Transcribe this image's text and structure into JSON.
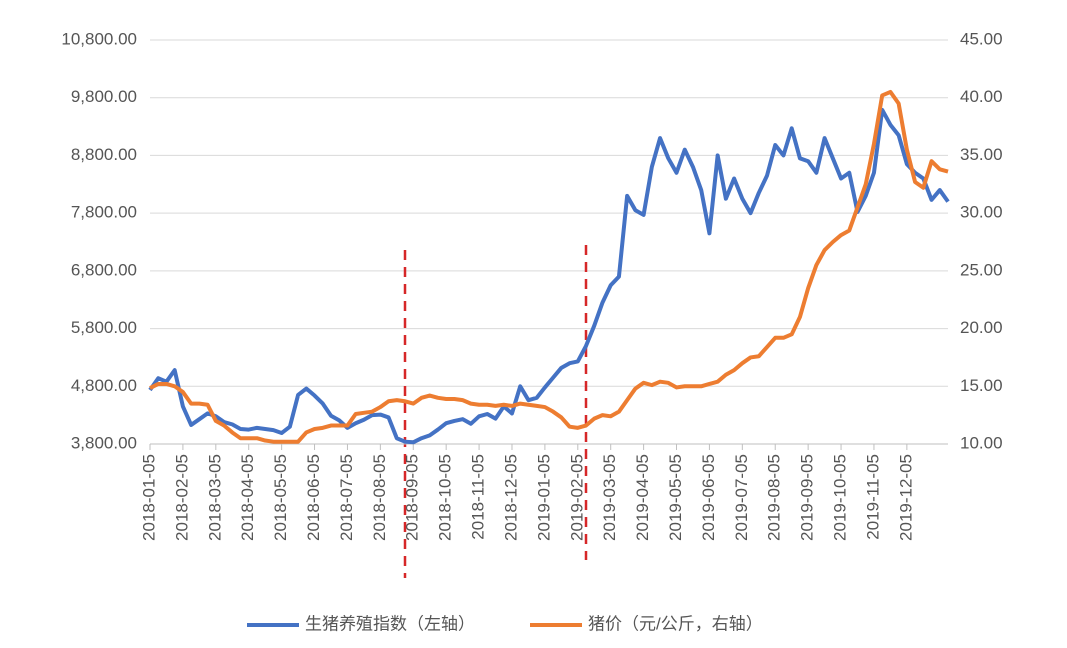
{
  "chart_data": {
    "type": "line",
    "categories": [
      "2018-01-05",
      null,
      null,
      null,
      "2018-02-05",
      null,
      null,
      null,
      "2018-03-05",
      null,
      null,
      null,
      "2018-04-05",
      null,
      null,
      null,
      "2018-05-05",
      null,
      null,
      null,
      "2018-06-05",
      null,
      null,
      null,
      "2018-07-05",
      null,
      null,
      null,
      "2018-08-05",
      null,
      null,
      null,
      "2018-09-05",
      null,
      null,
      null,
      "2018-10-05",
      null,
      null,
      null,
      "2018-11-05",
      null,
      null,
      null,
      "2018-12-05",
      null,
      null,
      null,
      "2019-01-05",
      null,
      null,
      null,
      "2019-02-05",
      null,
      null,
      null,
      "2019-03-05",
      null,
      null,
      null,
      "2019-04-05",
      null,
      null,
      null,
      "2019-05-05",
      null,
      null,
      null,
      "2019-06-05",
      null,
      null,
      null,
      "2019-07-05",
      null,
      null,
      null,
      "2019-08-05",
      null,
      null,
      null,
      "2019-09-05",
      null,
      null,
      null,
      "2019-10-05",
      null,
      null,
      null,
      "2019-11-05",
      null,
      null,
      null,
      "2019-12-05",
      null,
      null,
      null,
      null,
      null
    ],
    "series": [
      {
        "name": "生猪养殖指数（左轴）",
        "color": "#4472c4",
        "axis": "y",
        "values": [
          4735,
          4940,
          4880,
          5080,
          4450,
          4130,
          4230,
          4330,
          4280,
          4180,
          4140,
          4060,
          4050,
          4080,
          4060,
          4040,
          3990,
          4100,
          4650,
          4760,
          4640,
          4500,
          4290,
          4210,
          4080,
          4160,
          4220,
          4300,
          4310,
          4260,
          3900,
          3840,
          3830,
          3900,
          3950,
          4050,
          4160,
          4200,
          4230,
          4150,
          4280,
          4320,
          4240,
          4450,
          4330,
          4800,
          4560,
          4600,
          4780,
          4950,
          5120,
          5200,
          5230,
          5500,
          5850,
          6250,
          6550,
          6700,
          8100,
          7850,
          7770,
          8600,
          9100,
          8750,
          8500,
          8900,
          8600,
          8200,
          7450,
          8800,
          8050,
          8400,
          8050,
          7800,
          8150,
          8450,
          8980,
          8800,
          9270,
          8750,
          8700,
          8500,
          9100,
          8750,
          8400,
          8500,
          7820,
          8100,
          8500,
          9590,
          9330,
          9150,
          8650,
          8500,
          8400,
          8030,
          8200,
          8000
        ]
      },
      {
        "name": "猪价（元/公斤，右轴）",
        "color": "#ed7d31",
        "axis": "y2",
        "values": [
          14.85,
          15.2,
          15.2,
          15.0,
          14.5,
          13.5,
          13.5,
          13.4,
          12.0,
          11.6,
          11.0,
          10.5,
          10.5,
          10.5,
          10.3,
          10.2,
          10.2,
          10.2,
          10.2,
          11.0,
          11.3,
          11.4,
          11.6,
          11.6,
          11.6,
          12.6,
          12.7,
          12.8,
          13.2,
          13.7,
          13.8,
          13.7,
          13.5,
          14.0,
          14.2,
          14.0,
          13.9,
          13.9,
          13.8,
          13.5,
          13.4,
          13.4,
          13.3,
          13.4,
          13.3,
          13.5,
          13.4,
          13.3,
          13.2,
          12.8,
          12.3,
          11.5,
          11.4,
          11.6,
          12.2,
          12.5,
          12.4,
          12.8,
          13.8,
          14.8,
          15.3,
          15.1,
          15.4,
          15.3,
          14.9,
          15.0,
          15.0,
          15.0,
          15.2,
          15.4,
          16.0,
          16.4,
          17.0,
          17.5,
          17.6,
          18.4,
          19.2,
          19.2,
          19.5,
          21.0,
          23.5,
          25.5,
          26.8,
          27.5,
          28.1,
          28.5,
          30.5,
          32.5,
          36.0,
          40.2,
          40.5,
          39.5,
          35.5,
          32.7,
          32.2,
          34.5,
          33.8,
          33.6
        ]
      }
    ],
    "ylim": [
      3800,
      10800
    ],
    "yticks": [
      {
        "value": 3800,
        "label": "3,800.00"
      },
      {
        "value": 4800,
        "label": "4,800.00"
      },
      {
        "value": 5800,
        "label": "5,800.00"
      },
      {
        "value": 6800,
        "label": "6,800.00"
      },
      {
        "value": 7800,
        "label": "7,800.00"
      },
      {
        "value": 8800,
        "label": "8,800.00"
      },
      {
        "value": 9800,
        "label": "9,800.00"
      },
      {
        "value": 10800,
        "label": "10,800.00"
      }
    ],
    "y2lim": [
      10,
      45
    ],
    "y2ticks": [
      {
        "value": 10,
        "label": "10.00"
      },
      {
        "value": 15,
        "label": "15.00"
      },
      {
        "value": 20,
        "label": "20.00"
      },
      {
        "value": 25,
        "label": "25.00"
      },
      {
        "value": 30,
        "label": "30.00"
      },
      {
        "value": 35,
        "label": "35.00"
      },
      {
        "value": 40,
        "label": "40.00"
      },
      {
        "value": 45,
        "label": "45.00"
      }
    ],
    "grid": true
  }
}
